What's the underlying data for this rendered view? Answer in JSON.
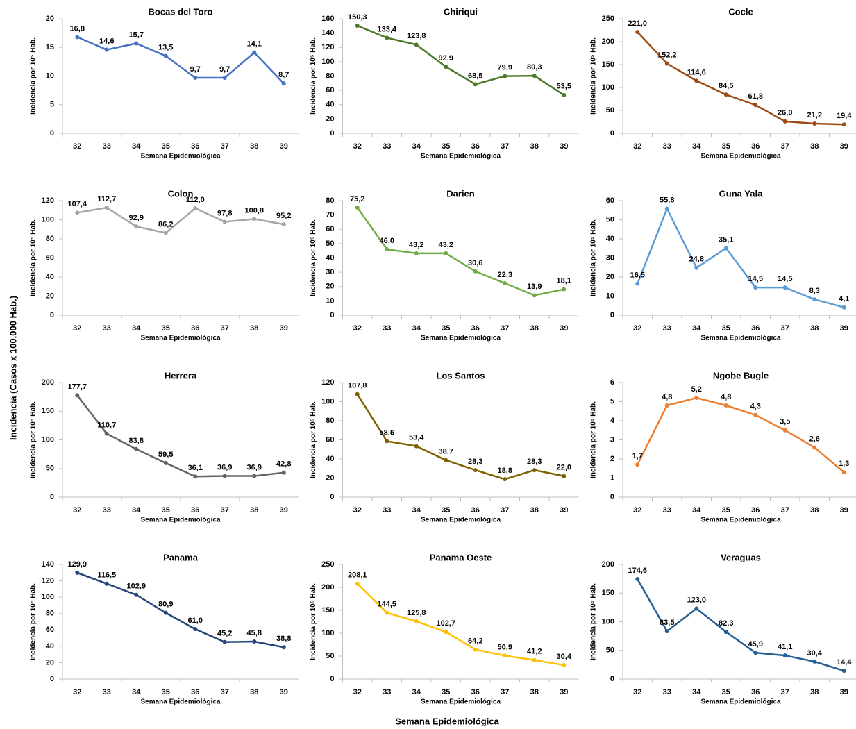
{
  "y_label": "Incidencia (Casos x 100.000 Hab.)",
  "x_label": "Semana Epidemiológica",
  "chart_data": [
    {
      "type": "line",
      "title": "Bocas del Toro",
      "x_label": "Semana Epidemiológica",
      "y_label": "Incidencia por 10⁵ Hab.",
      "categories": [
        "32",
        "33",
        "34",
        "35",
        "36",
        "37",
        "38",
        "39"
      ],
      "values": [
        16.8,
        14.6,
        15.7,
        13.5,
        9.7,
        9.7,
        14.1,
        8.7
      ],
      "value_labels": [
        "16,8",
        "14,6",
        "15,7",
        "13,5",
        "9,7",
        "9,7",
        "14,1",
        "8,7"
      ],
      "color": "#4472c4",
      "ylim": [
        0,
        20
      ],
      "yticks": [
        0,
        5,
        10,
        15,
        20
      ]
    },
    {
      "type": "line",
      "title": "Chiriqui",
      "x_label": "Semana Epidemiológica",
      "y_label": "Incidencia por 10⁵ Hab.",
      "categories": [
        "32",
        "33",
        "34",
        "35",
        "36",
        "37",
        "38",
        "39"
      ],
      "values": [
        150.3,
        133.4,
        123.8,
        92.9,
        68.5,
        79.9,
        80.3,
        53.5
      ],
      "value_labels": [
        "150,3",
        "133,4",
        "123,8",
        "92,9",
        "68,5",
        "79,9",
        "80,3",
        "53,5"
      ],
      "color": "#4e7a28",
      "ylim": [
        0,
        160
      ],
      "yticks": [
        0,
        20,
        40,
        60,
        80,
        100,
        120,
        140,
        160
      ]
    },
    {
      "type": "line",
      "title": "Cocle",
      "x_label": "Semana Epidemiológica",
      "y_label": "Incidencia por 10⁵ Hab.",
      "categories": [
        "32",
        "33",
        "34",
        "35",
        "36",
        "37",
        "38",
        "39"
      ],
      "values": [
        221.0,
        152.2,
        114.6,
        84.5,
        61.8,
        26.0,
        21.2,
        19.4
      ],
      "value_labels": [
        "221,0",
        "152,2",
        "114,6",
        "84,5",
        "61,8",
        "26,0",
        "21,2",
        "19,4"
      ],
      "color": "#9e4a17",
      "ylim": [
        0,
        250
      ],
      "yticks": [
        0,
        50,
        100,
        150,
        200,
        250
      ]
    },
    {
      "type": "line",
      "title": "Colon",
      "x_label": "Semana Epidemiológica",
      "y_label": "Incidencia por 10⁵ Hab.",
      "categories": [
        "32",
        "33",
        "34",
        "35",
        "36",
        "37",
        "38",
        "39"
      ],
      "values": [
        107.4,
        112.7,
        92.9,
        86.2,
        112.0,
        97.8,
        100.8,
        95.2
      ],
      "value_labels": [
        "107,4",
        "112,7",
        "92,9",
        "86,2",
        "112,0",
        "97,8",
        "100,8",
        "95,2"
      ],
      "color": "#a5a5a5",
      "ylim": [
        0,
        120
      ],
      "yticks": [
        0,
        20,
        40,
        60,
        80,
        100,
        120
      ]
    },
    {
      "type": "line",
      "title": "Darien",
      "x_label": "Semana Epidemiológica",
      "y_label": "Incidencia por 10⁵ Hab.",
      "categories": [
        "32",
        "33",
        "34",
        "35",
        "36",
        "37",
        "38",
        "39"
      ],
      "values": [
        75.2,
        46.0,
        43.2,
        43.2,
        30.6,
        22.3,
        13.9,
        18.1
      ],
      "value_labels": [
        "75,2",
        "46,0",
        "43,2",
        "43,2",
        "30,6",
        "22,3",
        "13,9",
        "18,1"
      ],
      "color": "#70ad47",
      "ylim": [
        0,
        80
      ],
      "yticks": [
        0,
        10,
        20,
        30,
        40,
        50,
        60,
        70,
        80
      ]
    },
    {
      "type": "line",
      "title": "Guna Yala",
      "x_label": "Semana Epidemiológica",
      "y_label": "Incidencia por 10⁵ Hab.",
      "categories": [
        "32",
        "33",
        "34",
        "35",
        "36",
        "37",
        "38",
        "39"
      ],
      "values": [
        16.5,
        55.8,
        24.8,
        35.1,
        14.5,
        14.5,
        8.3,
        4.1
      ],
      "value_labels": [
        "16,5",
        "55,8",
        "24,8",
        "35,1",
        "14,5",
        "14,5",
        "8,3",
        "4,1"
      ],
      "color": "#5b9bd5",
      "ylim": [
        0,
        60
      ],
      "yticks": [
        0,
        10,
        20,
        30,
        40,
        50,
        60
      ]
    },
    {
      "type": "line",
      "title": "Herrera",
      "x_label": "Semana Epidemiológica",
      "y_label": "Incidencia por 10⁵ Hab.",
      "categories": [
        "32",
        "33",
        "34",
        "35",
        "36",
        "37",
        "38",
        "39"
      ],
      "values": [
        177.7,
        110.7,
        83.8,
        59.5,
        36.1,
        36.9,
        36.9,
        42.8
      ],
      "value_labels": [
        "177,7",
        "110,7",
        "83,8",
        "59,5",
        "36,1",
        "36,9",
        "36,9",
        "42,8"
      ],
      "color": "#636363",
      "ylim": [
        0,
        200
      ],
      "yticks": [
        0,
        50,
        100,
        150,
        200
      ]
    },
    {
      "type": "line",
      "title": "Los Santos",
      "x_label": "Semana Epidemiológica",
      "y_label": "Incidencia por 10⁵ Hab.",
      "categories": [
        "32",
        "33",
        "34",
        "35",
        "36",
        "37",
        "38",
        "39"
      ],
      "values": [
        107.8,
        58.6,
        53.4,
        38.7,
        28.3,
        18.8,
        28.3,
        22.0
      ],
      "value_labels": [
        "107,8",
        "58,6",
        "53,4",
        "38,7",
        "28,3",
        "18,8",
        "28,3",
        "22,0"
      ],
      "color": "#806000",
      "ylim": [
        0,
        120
      ],
      "yticks": [
        0,
        20,
        40,
        60,
        80,
        100,
        120
      ]
    },
    {
      "type": "line",
      "title": "Ngobe Bugle",
      "x_label": "Semana Epidemiológica",
      "y_label": "Incidencia por 10⁵ Hab.",
      "categories": [
        "32",
        "33",
        "34",
        "35",
        "36",
        "37",
        "38",
        "39"
      ],
      "values": [
        1.7,
        4.8,
        5.2,
        4.8,
        4.3,
        3.5,
        2.6,
        1.3
      ],
      "value_labels": [
        "1,7",
        "4,8",
        "5,2",
        "4,8",
        "4,3",
        "3,5",
        "2,6",
        "1,3"
      ],
      "color": "#ed7d31",
      "ylim": [
        0,
        6
      ],
      "yticks": [
        0,
        1,
        2,
        3,
        4,
        5,
        6
      ]
    },
    {
      "type": "line",
      "title": "Panama",
      "x_label": "Semana Epidemiológica",
      "y_label": "Incidencia por 10⁵ Hab.",
      "categories": [
        "32",
        "33",
        "34",
        "35",
        "36",
        "37",
        "38",
        "39"
      ],
      "values": [
        129.9,
        116.5,
        102.9,
        80.9,
        61.0,
        45.2,
        45.8,
        38.8
      ],
      "value_labels": [
        "129,9",
        "116,5",
        "102,9",
        "80,9",
        "61,0",
        "45,2",
        "45,8",
        "38,8"
      ],
      "color": "#264478",
      "ylim": [
        0,
        140
      ],
      "yticks": [
        0,
        20,
        40,
        60,
        80,
        100,
        120,
        140
      ]
    },
    {
      "type": "line",
      "title": "Panama Oeste",
      "x_label": "Semana Epidemiológica",
      "y_label": "Incidencia por 10⁵ Hab.",
      "categories": [
        "32",
        "33",
        "34",
        "35",
        "36",
        "37",
        "38",
        "39"
      ],
      "values": [
        208.1,
        144.5,
        125.8,
        102.7,
        64.2,
        50.9,
        41.2,
        30.4
      ],
      "value_labels": [
        "208,1",
        "144,5",
        "125,8",
        "102,7",
        "64,2",
        "50,9",
        "41,2",
        "30,4"
      ],
      "color": "#ffc000",
      "ylim": [
        0,
        250
      ],
      "yticks": [
        0,
        50,
        100,
        150,
        200,
        250
      ]
    },
    {
      "type": "line",
      "title": "Veraguas",
      "x_label": "Semana Epidemiológica",
      "y_label": "Incidencia por 10⁵ Hab.",
      "categories": [
        "32",
        "33",
        "34",
        "35",
        "36",
        "37",
        "38",
        "39"
      ],
      "values": [
        174.6,
        83.5,
        123.0,
        82.3,
        45.9,
        41.1,
        30.4,
        14.4
      ],
      "value_labels": [
        "174,6",
        "83,5",
        "123,0",
        "82,3",
        "45,9",
        "41,1",
        "30,4",
        "14,4"
      ],
      "color": "#255e91",
      "ylim": [
        0,
        200
      ],
      "yticks": [
        0,
        50,
        100,
        150,
        200
      ]
    }
  ]
}
